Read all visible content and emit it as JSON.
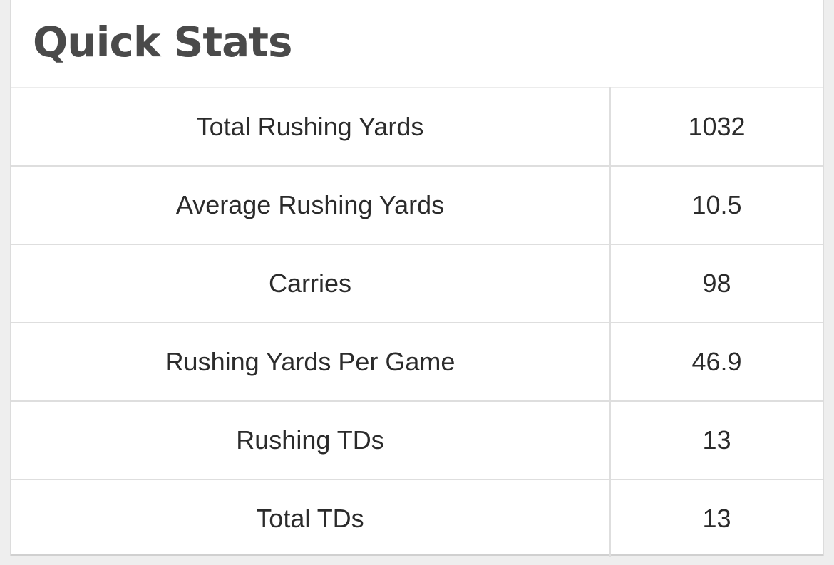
{
  "title": "Quick Stats",
  "rows": [
    {
      "label": "Total Rushing Yards",
      "value": "1032"
    },
    {
      "label": "Average Rushing Yards",
      "value": "10.5"
    },
    {
      "label": "Carries",
      "value": "98"
    },
    {
      "label": "Rushing Yards Per Game",
      "value": "46.9"
    },
    {
      "label": "Rushing TDs",
      "value": "13"
    },
    {
      "label": "Total TDs",
      "value": "13"
    }
  ]
}
